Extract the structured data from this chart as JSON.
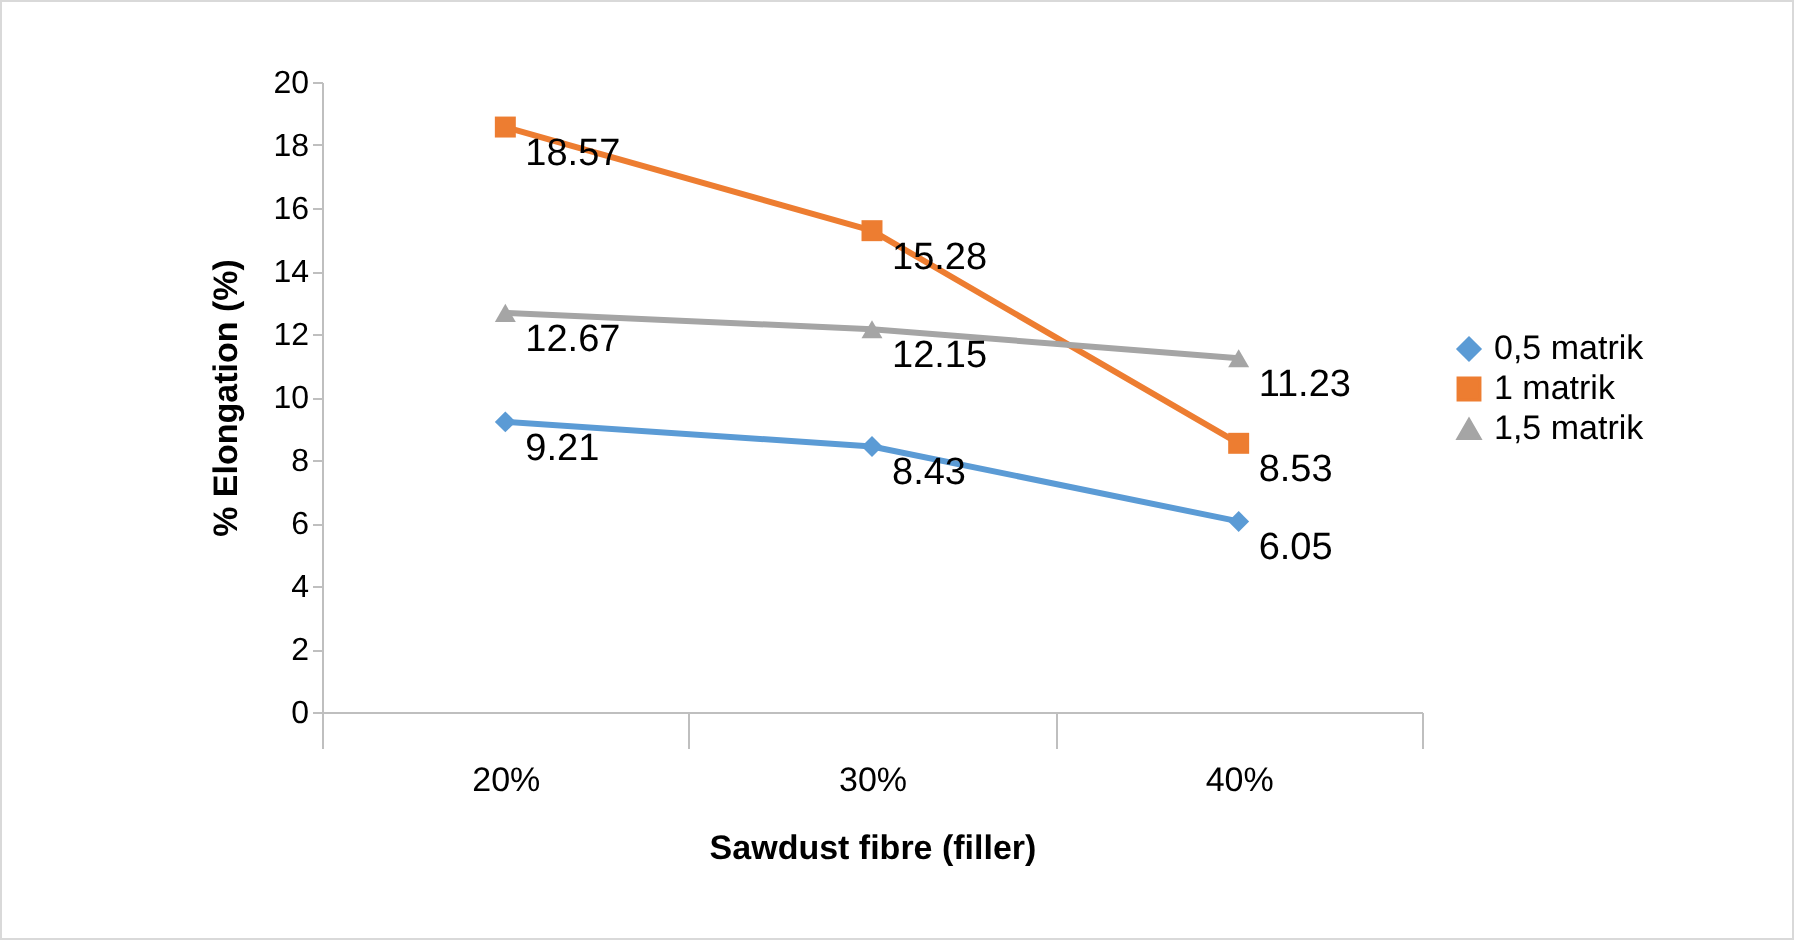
{
  "chart_data": {
    "type": "line",
    "xlabel": "Sawdust fibre (filler)",
    "ylabel": "% Elongation (%)",
    "categories": [
      "20%",
      "30%",
      "40%"
    ],
    "series": [
      {
        "name": "0,5 matrik",
        "color": "#5b9bd5",
        "marker": "diamond",
        "values": [
          9.21,
          8.43,
          6.05
        ]
      },
      {
        "name": "1 matrik",
        "color": "#ed7d31",
        "marker": "square",
        "values": [
          18.57,
          15.28,
          8.53
        ]
      },
      {
        "name": "1,5 matrik",
        "color": "#a5a5a5",
        "marker": "triangle",
        "values": [
          12.67,
          12.15,
          11.23
        ]
      }
    ],
    "ylim": [
      0,
      20
    ],
    "yticks": [
      0,
      2,
      4,
      6,
      8,
      10,
      12,
      14,
      16,
      18,
      20
    ],
    "grid": false,
    "legend": "right",
    "data_labels": true
  }
}
